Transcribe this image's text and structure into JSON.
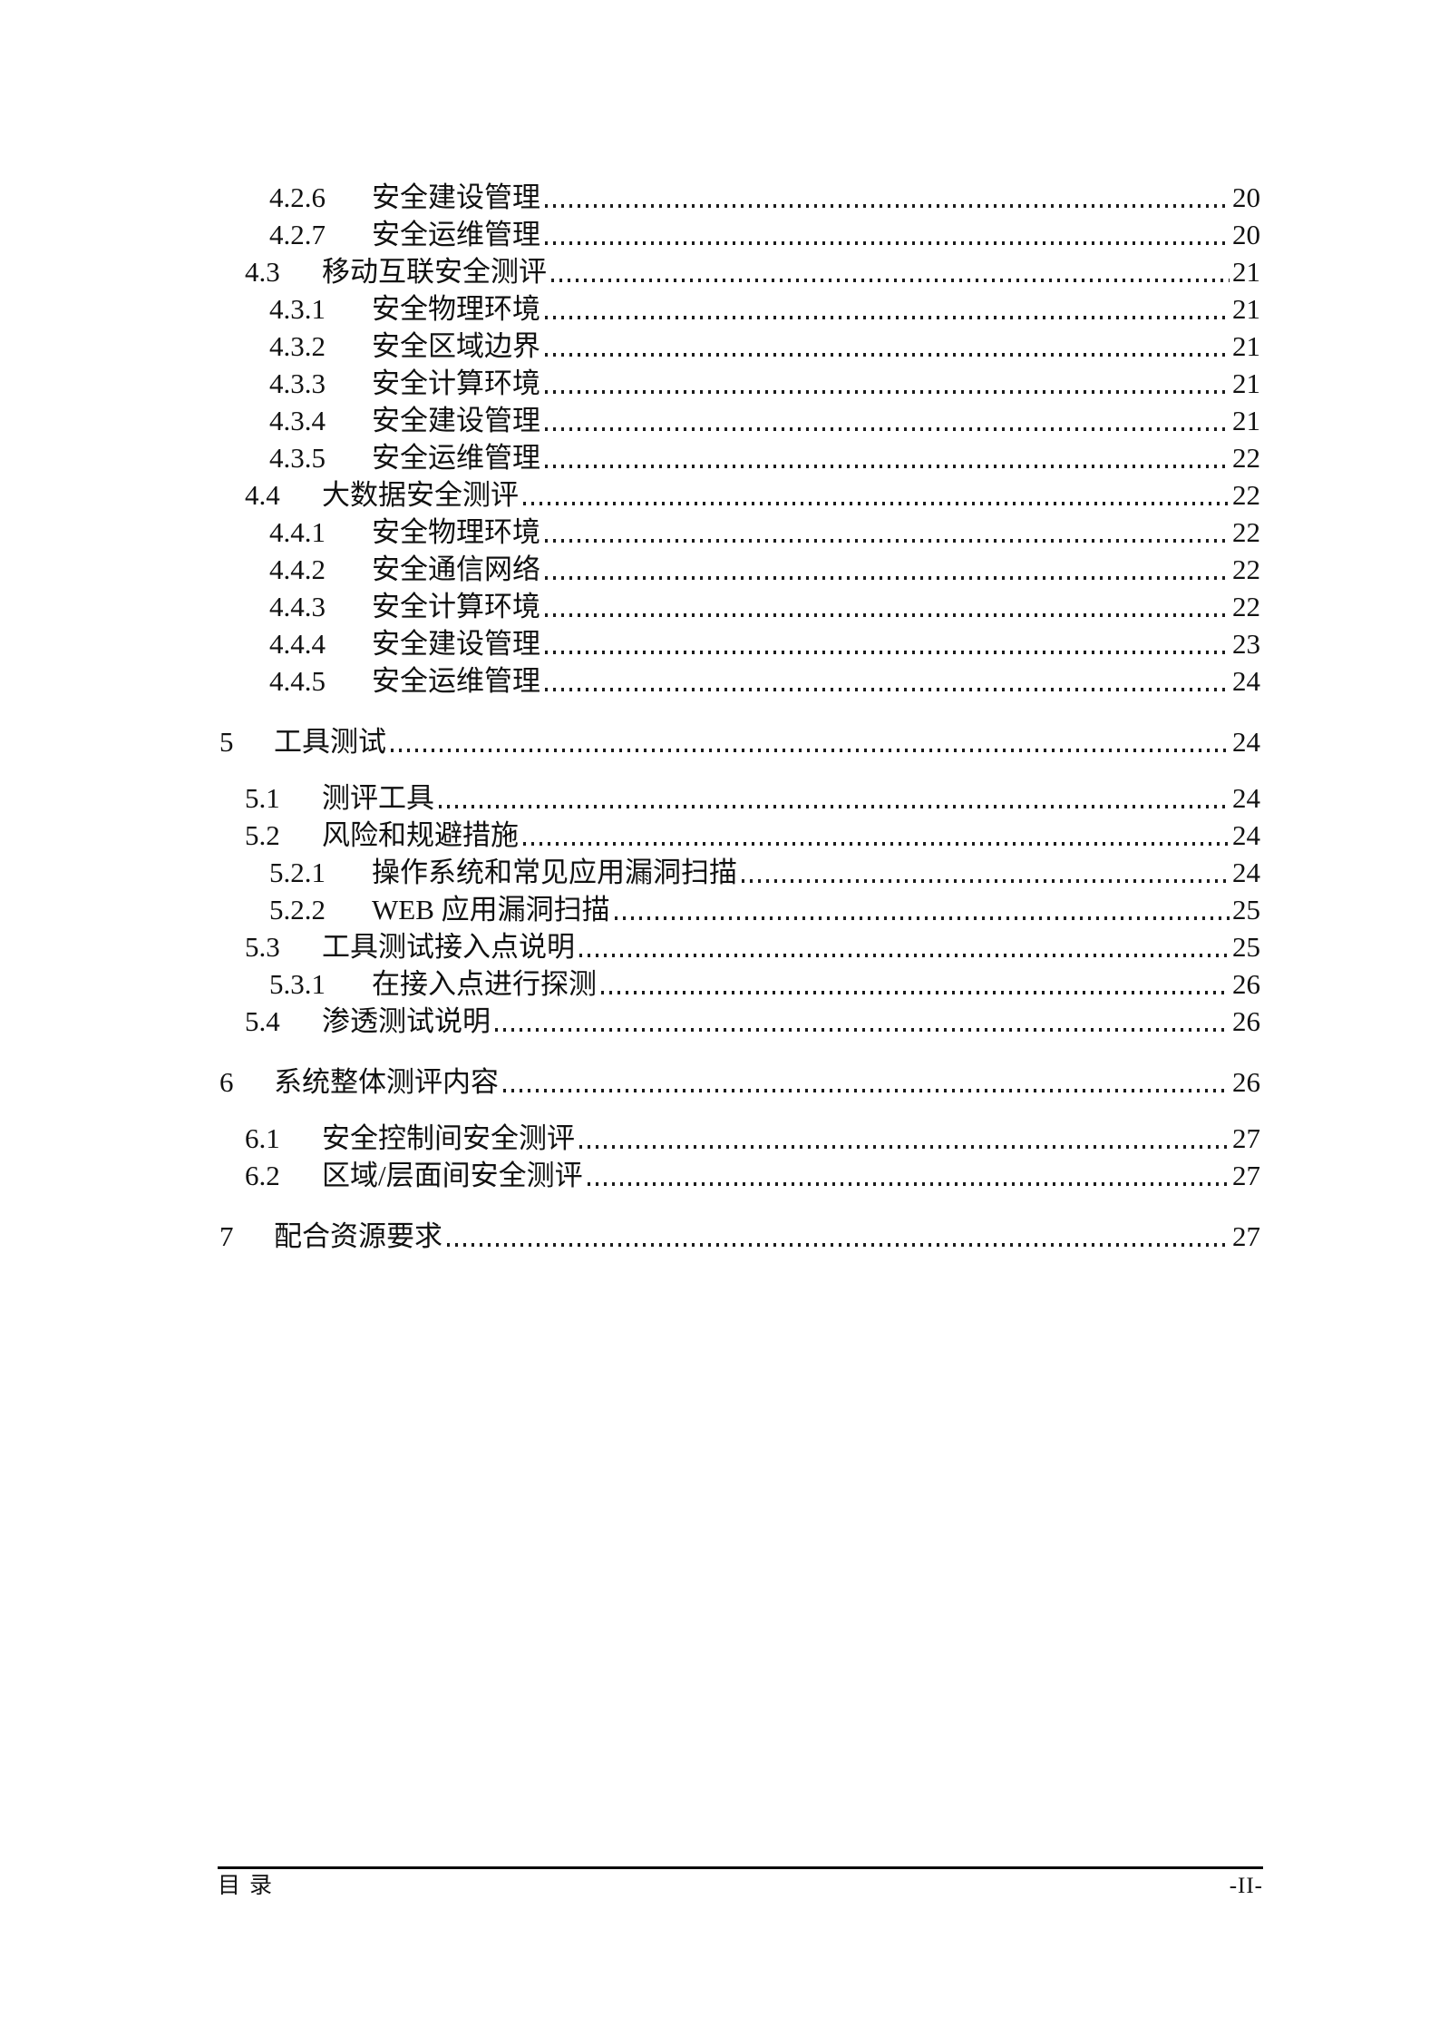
{
  "document": {
    "toc": {
      "entries": [
        {
          "level": 3,
          "number": "4.2.6",
          "title": "安全建设管理",
          "page": "20"
        },
        {
          "level": 3,
          "number": "4.2.7",
          "title": "安全运维管理",
          "page": "20"
        },
        {
          "level": 2,
          "number": "4.3",
          "title": "移动互联安全测评",
          "page": "21"
        },
        {
          "level": 3,
          "number": "4.3.1",
          "title": "安全物理环境",
          "page": "21"
        },
        {
          "level": 3,
          "number": "4.3.2",
          "title": "安全区域边界",
          "page": "21"
        },
        {
          "level": 3,
          "number": "4.3.3",
          "title": "安全计算环境",
          "page": "21"
        },
        {
          "level": 3,
          "number": "4.3.4",
          "title": "安全建设管理",
          "page": "21"
        },
        {
          "level": 3,
          "number": "4.3.5",
          "title": "安全运维管理",
          "page": "22"
        },
        {
          "level": 2,
          "number": "4.4",
          "title": "大数据安全测评",
          "page": "22"
        },
        {
          "level": 3,
          "number": "4.4.1",
          "title": "安全物理环境",
          "page": "22"
        },
        {
          "level": 3,
          "number": "4.4.2",
          "title": "安全通信网络",
          "page": "22"
        },
        {
          "level": 3,
          "number": "4.4.3",
          "title": "安全计算环境",
          "page": "22"
        },
        {
          "level": 3,
          "number": "4.4.4",
          "title": "安全建设管理",
          "page": "23"
        },
        {
          "level": 3,
          "number": "4.4.5",
          "title": "安全运维管理",
          "page": "24"
        },
        {
          "level": 1,
          "number": "5",
          "title": "工具测试",
          "page": "24"
        },
        {
          "level": 2,
          "number": "5.1",
          "title": "测评工具",
          "page": "24"
        },
        {
          "level": 2,
          "number": "5.2",
          "title": "风险和规避措施",
          "page": "24"
        },
        {
          "level": 3,
          "number": "5.2.1",
          "title": "操作系统和常见应用漏洞扫描",
          "page": "24"
        },
        {
          "level": 3,
          "number": "5.2.2",
          "title": "WEB 应用漏洞扫描",
          "page": "25"
        },
        {
          "level": 2,
          "number": "5.3",
          "title": "工具测试接入点说明",
          "page": "25"
        },
        {
          "level": 3,
          "number": "5.3.1",
          "title": "在接入点进行探测",
          "page": "26"
        },
        {
          "level": 2,
          "number": "5.4",
          "title": "渗透测试说明",
          "page": "26"
        },
        {
          "level": 1,
          "number": "6",
          "title": "系统整体测评内容",
          "page": "26"
        },
        {
          "level": 2,
          "number": "6.1",
          "title": "安全控制间安全测评",
          "page": "27"
        },
        {
          "level": 2,
          "number": "6.2",
          "title": "区域/层面间安全测评",
          "page": "27"
        },
        {
          "level": 1,
          "number": "7",
          "title": "配合资源要求",
          "page": "27"
        }
      ]
    },
    "footer": {
      "left_label": "目录",
      "page_number": "-II-"
    }
  }
}
